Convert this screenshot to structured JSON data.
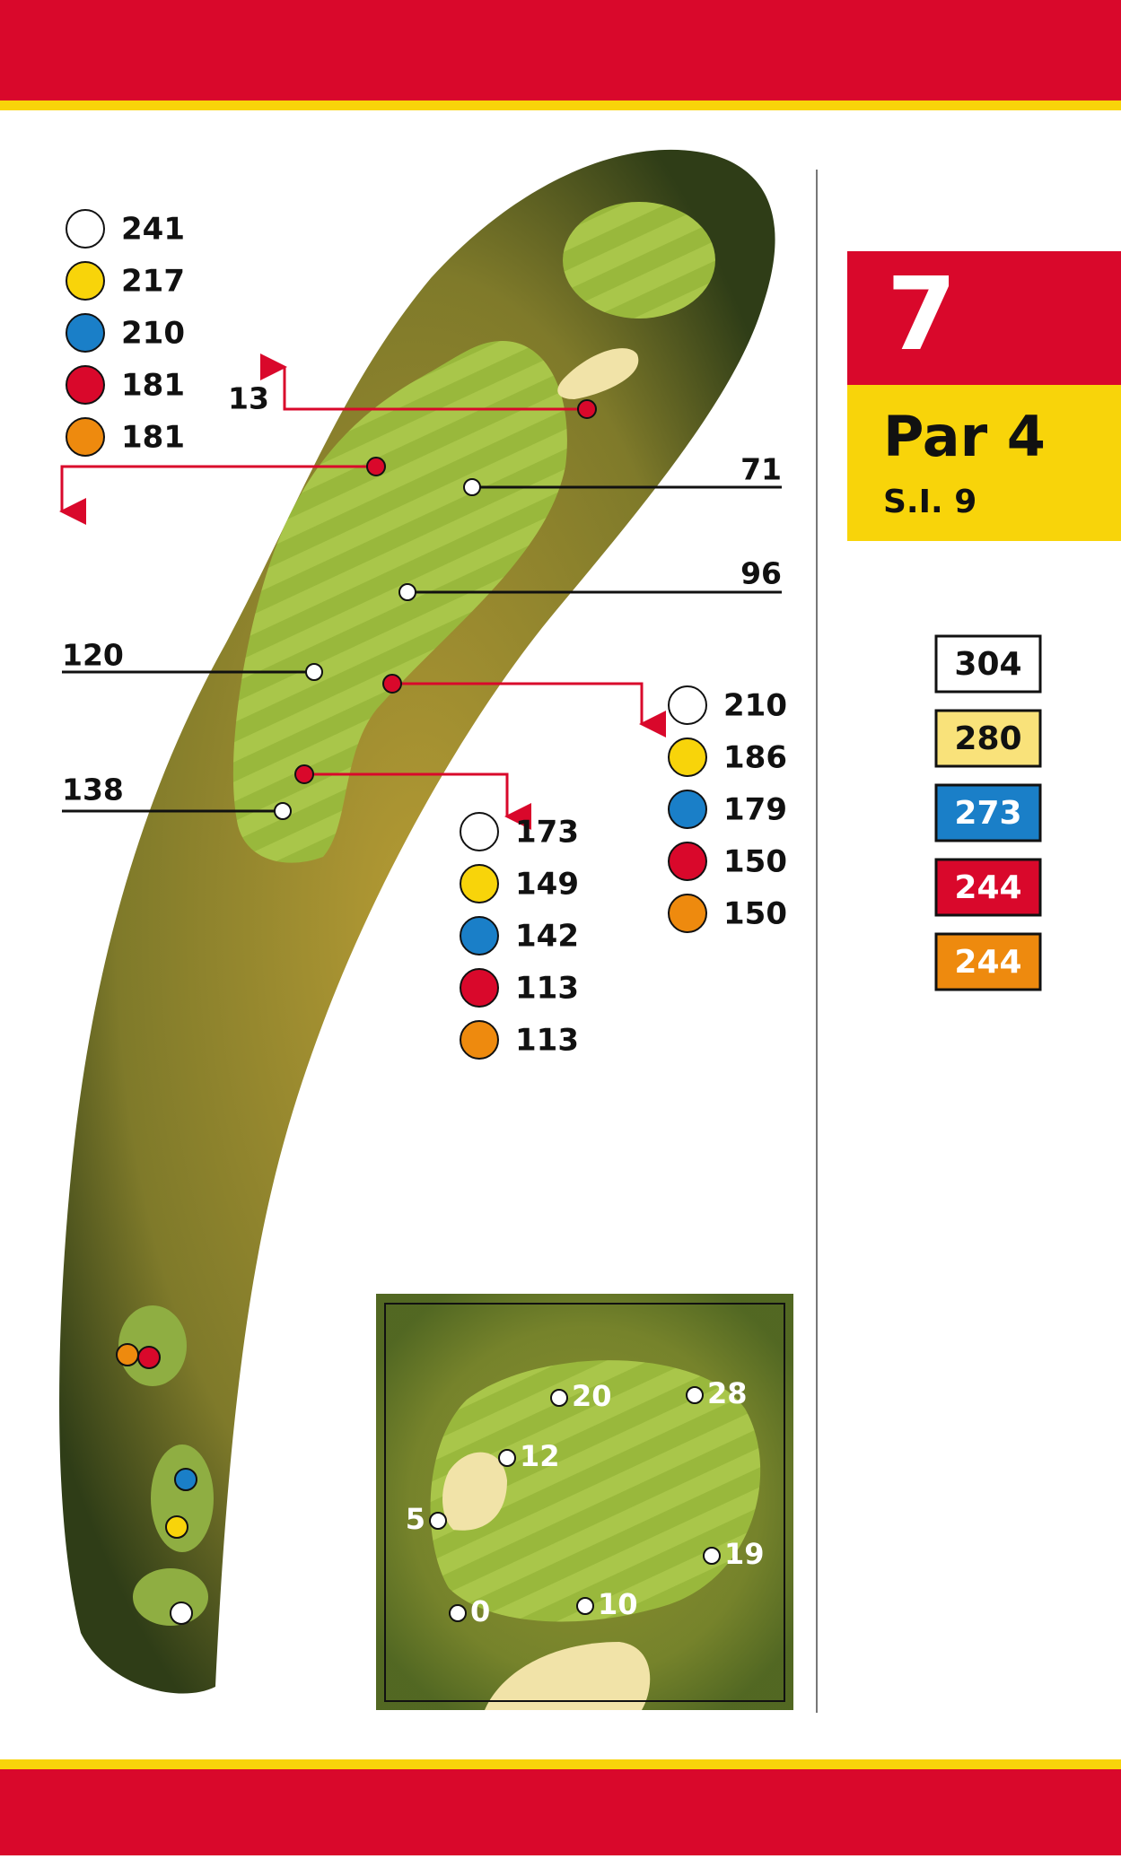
{
  "hole": {
    "number": "7",
    "par": "Par 4",
    "stroke_index": "S.I. 9"
  },
  "tees": [
    {
      "color": "#ffffff",
      "text_color": "#111111",
      "yards": 304
    },
    {
      "color": "#f9e27a",
      "text_color": "#111111",
      "yards": 280
    },
    {
      "color": "#1a7fc8",
      "text_color": "#ffffff",
      "yards": 273
    },
    {
      "color": "#d9082b",
      "text_color": "#ffffff",
      "yards": 244
    },
    {
      "color": "#ee8a0e",
      "text_color": "#ffffff",
      "yards": 244
    }
  ],
  "distance_groups": [
    {
      "values": [
        241,
        217,
        210,
        181,
        181
      ]
    },
    {
      "values": [
        210,
        186,
        179,
        150,
        150
      ]
    },
    {
      "values": [
        173,
        149,
        142,
        113,
        113
      ]
    }
  ],
  "dot_colors": [
    "#ffffff",
    "#f8d40a",
    "#1a7fc8",
    "#d9082b",
    "#ee8a0e"
  ],
  "fairway_markers": [
    13,
    71,
    96,
    120,
    138
  ],
  "green_pins": [
    20,
    28,
    12,
    5,
    19,
    0,
    10
  ]
}
